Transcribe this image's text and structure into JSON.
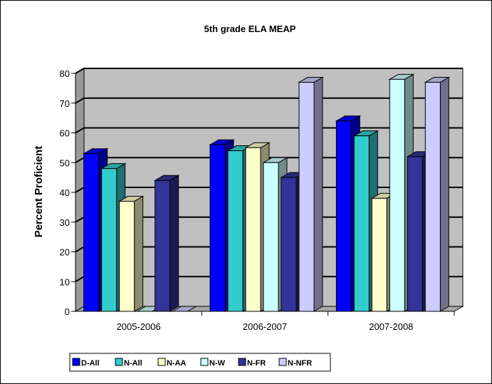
{
  "chart_data": {
    "type": "bar",
    "title": "5th grade ELA MEAP",
    "xlabel": "",
    "ylabel": "Percent Proficient",
    "ylim": [
      0,
      80
    ],
    "yticks": [
      0,
      10,
      20,
      30,
      40,
      50,
      60,
      70,
      80
    ],
    "grid": true,
    "legend_position": "bottom-left",
    "categories": [
      "2005-2006",
      "2006-2007",
      "2007-2008"
    ],
    "series": [
      {
        "name": "D-All",
        "values": [
          53,
          56,
          64
        ],
        "color": "#0000ff"
      },
      {
        "name": "N-All",
        "values": [
          48,
          54,
          59
        ],
        "color": "#33cccc"
      },
      {
        "name": "N-AA",
        "values": [
          37,
          55,
          38
        ],
        "color": "#ffffcc"
      },
      {
        "name": "N-W",
        "values": [
          0,
          50,
          78
        ],
        "color": "#ccffff"
      },
      {
        "name": "N-FR",
        "values": [
          44,
          45,
          52
        ],
        "color": "#333399"
      },
      {
        "name": "N-NFR",
        "values": [
          0,
          77,
          77
        ],
        "color": "#ccccff"
      }
    ]
  }
}
